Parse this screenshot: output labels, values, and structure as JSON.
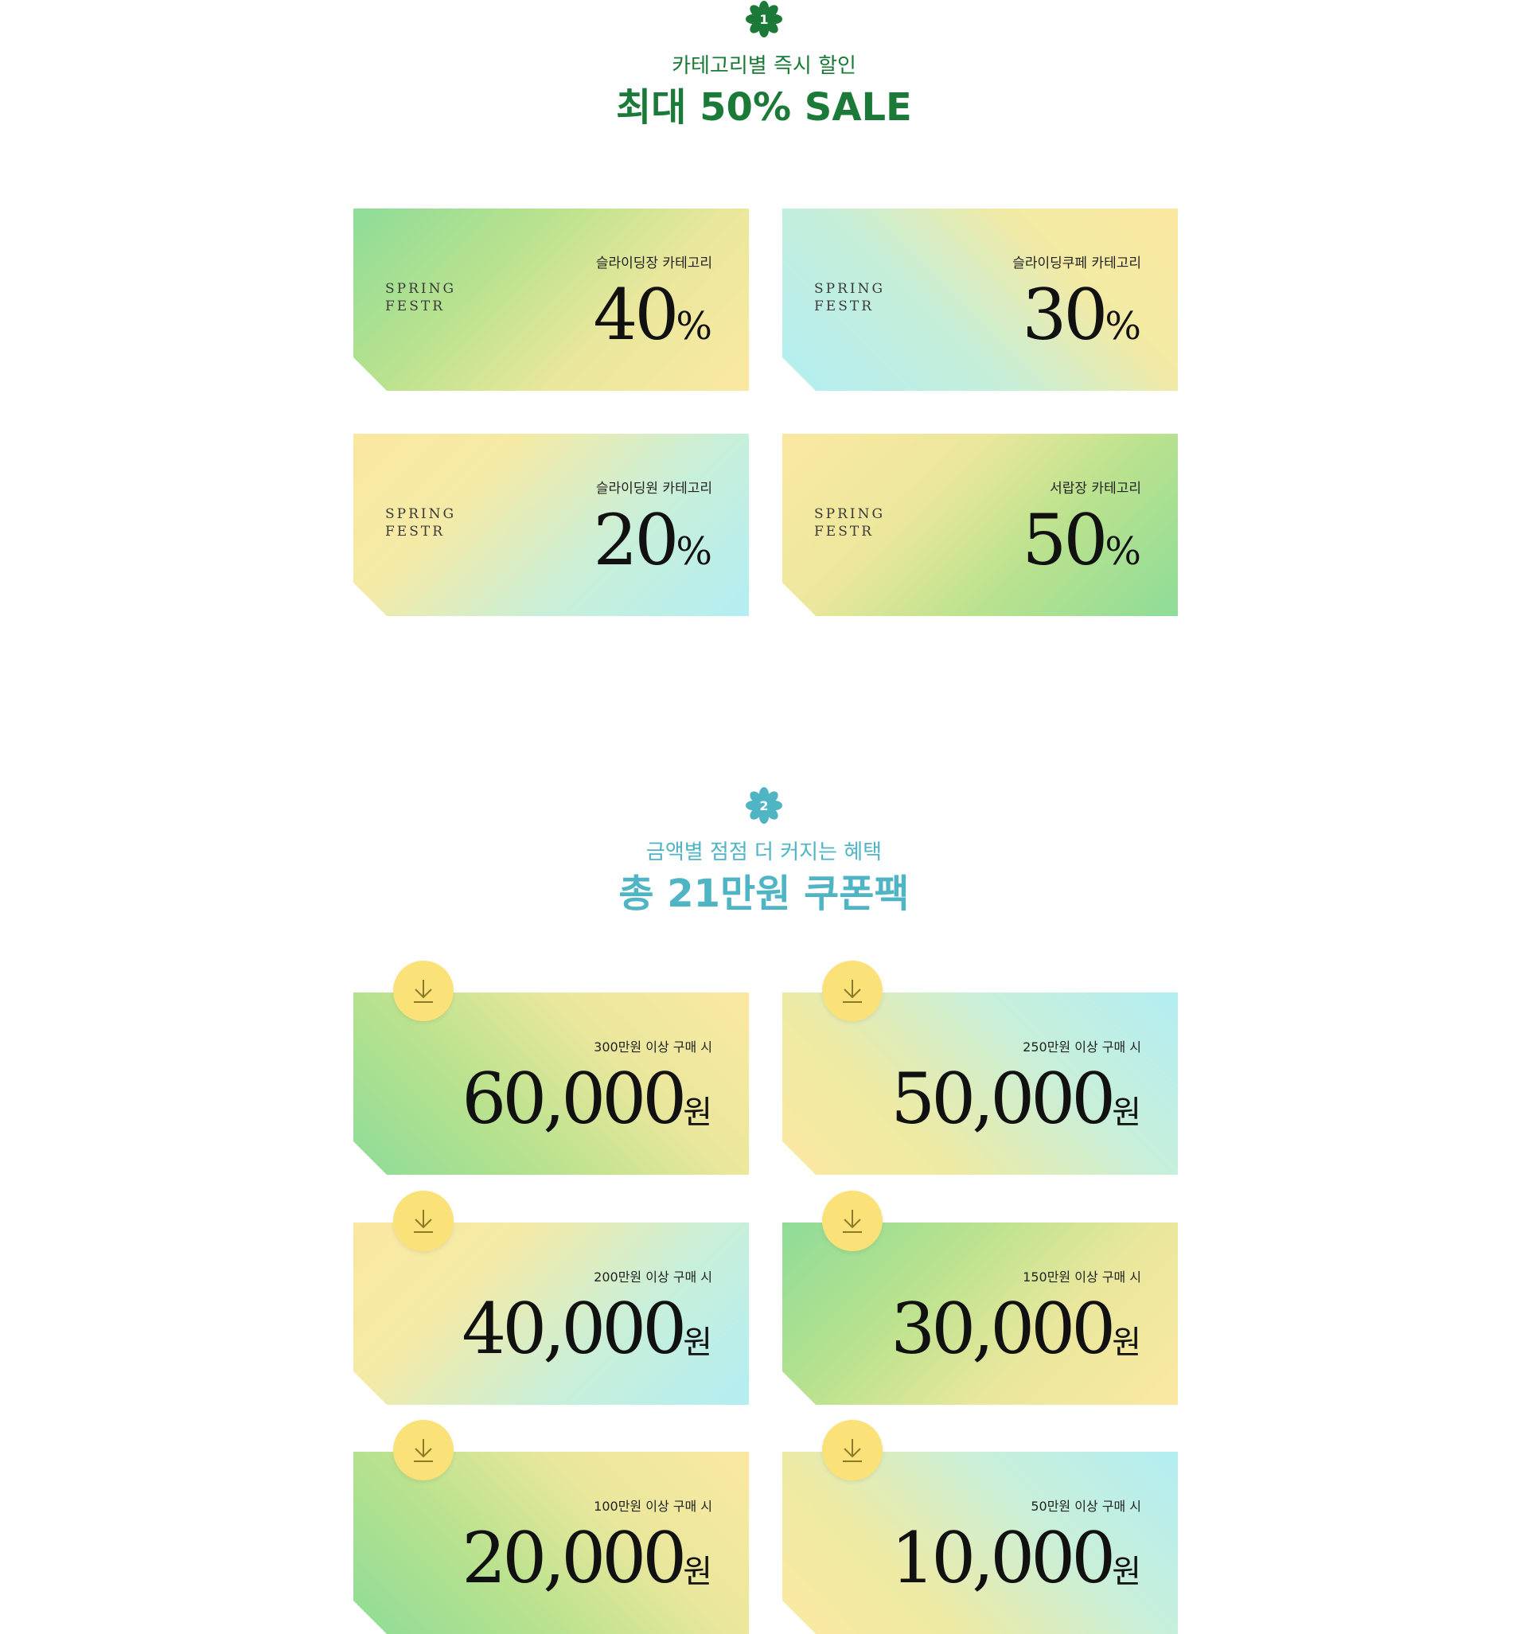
{
  "section1": {
    "badge_number": "1",
    "badge_icon": "flower-badge-icon",
    "badge_color": "#1b7a37",
    "subtitle": "카테고리별 즉시 할인",
    "title": "최대 50% SALE",
    "cards": [
      {
        "brand_line1": "SPRING",
        "brand_line2": "FESTR",
        "category": "슬라이딩장 카테고리",
        "percent": "40",
        "unit": "%"
      },
      {
        "brand_line1": "SPRING",
        "brand_line2": "FESTR",
        "category": "슬라이딩쿠페 카테고리",
        "percent": "30",
        "unit": "%"
      },
      {
        "brand_line1": "SPRING",
        "brand_line2": "FESTR",
        "category": "슬라이딩원 카테고리",
        "percent": "20",
        "unit": "%"
      },
      {
        "brand_line1": "SPRING",
        "brand_line2": "FESTR",
        "category": "서랍장 카테고리",
        "percent": "50",
        "unit": "%"
      }
    ]
  },
  "section2": {
    "badge_number": "2",
    "badge_icon": "flower-badge-icon",
    "badge_color": "#4fb4c4",
    "subtitle": "금액별 점점 더 커지는 혜택",
    "title": "총 21만원 쿠폰팩",
    "download_icon": "download-arrow-icon",
    "coupons": [
      {
        "condition": "300만원 이상 구매 시",
        "amount": "60,000",
        "unit": "원"
      },
      {
        "condition": "250만원 이상 구매 시",
        "amount": "50,000",
        "unit": "원"
      },
      {
        "condition": "200만원 이상 구매 시",
        "amount": "40,000",
        "unit": "원"
      },
      {
        "condition": "150만원 이상 구매 시",
        "amount": "30,000",
        "unit": "원"
      },
      {
        "condition": "100만원 이상 구매 시",
        "amount": "20,000",
        "unit": "원"
      },
      {
        "condition": "50만원 이상 구매 시",
        "amount": "10,000",
        "unit": "원"
      }
    ]
  },
  "colors": {
    "green_accent": "#1b7a37",
    "teal_accent": "#4fb4c4",
    "download_button": "#fbe278"
  }
}
